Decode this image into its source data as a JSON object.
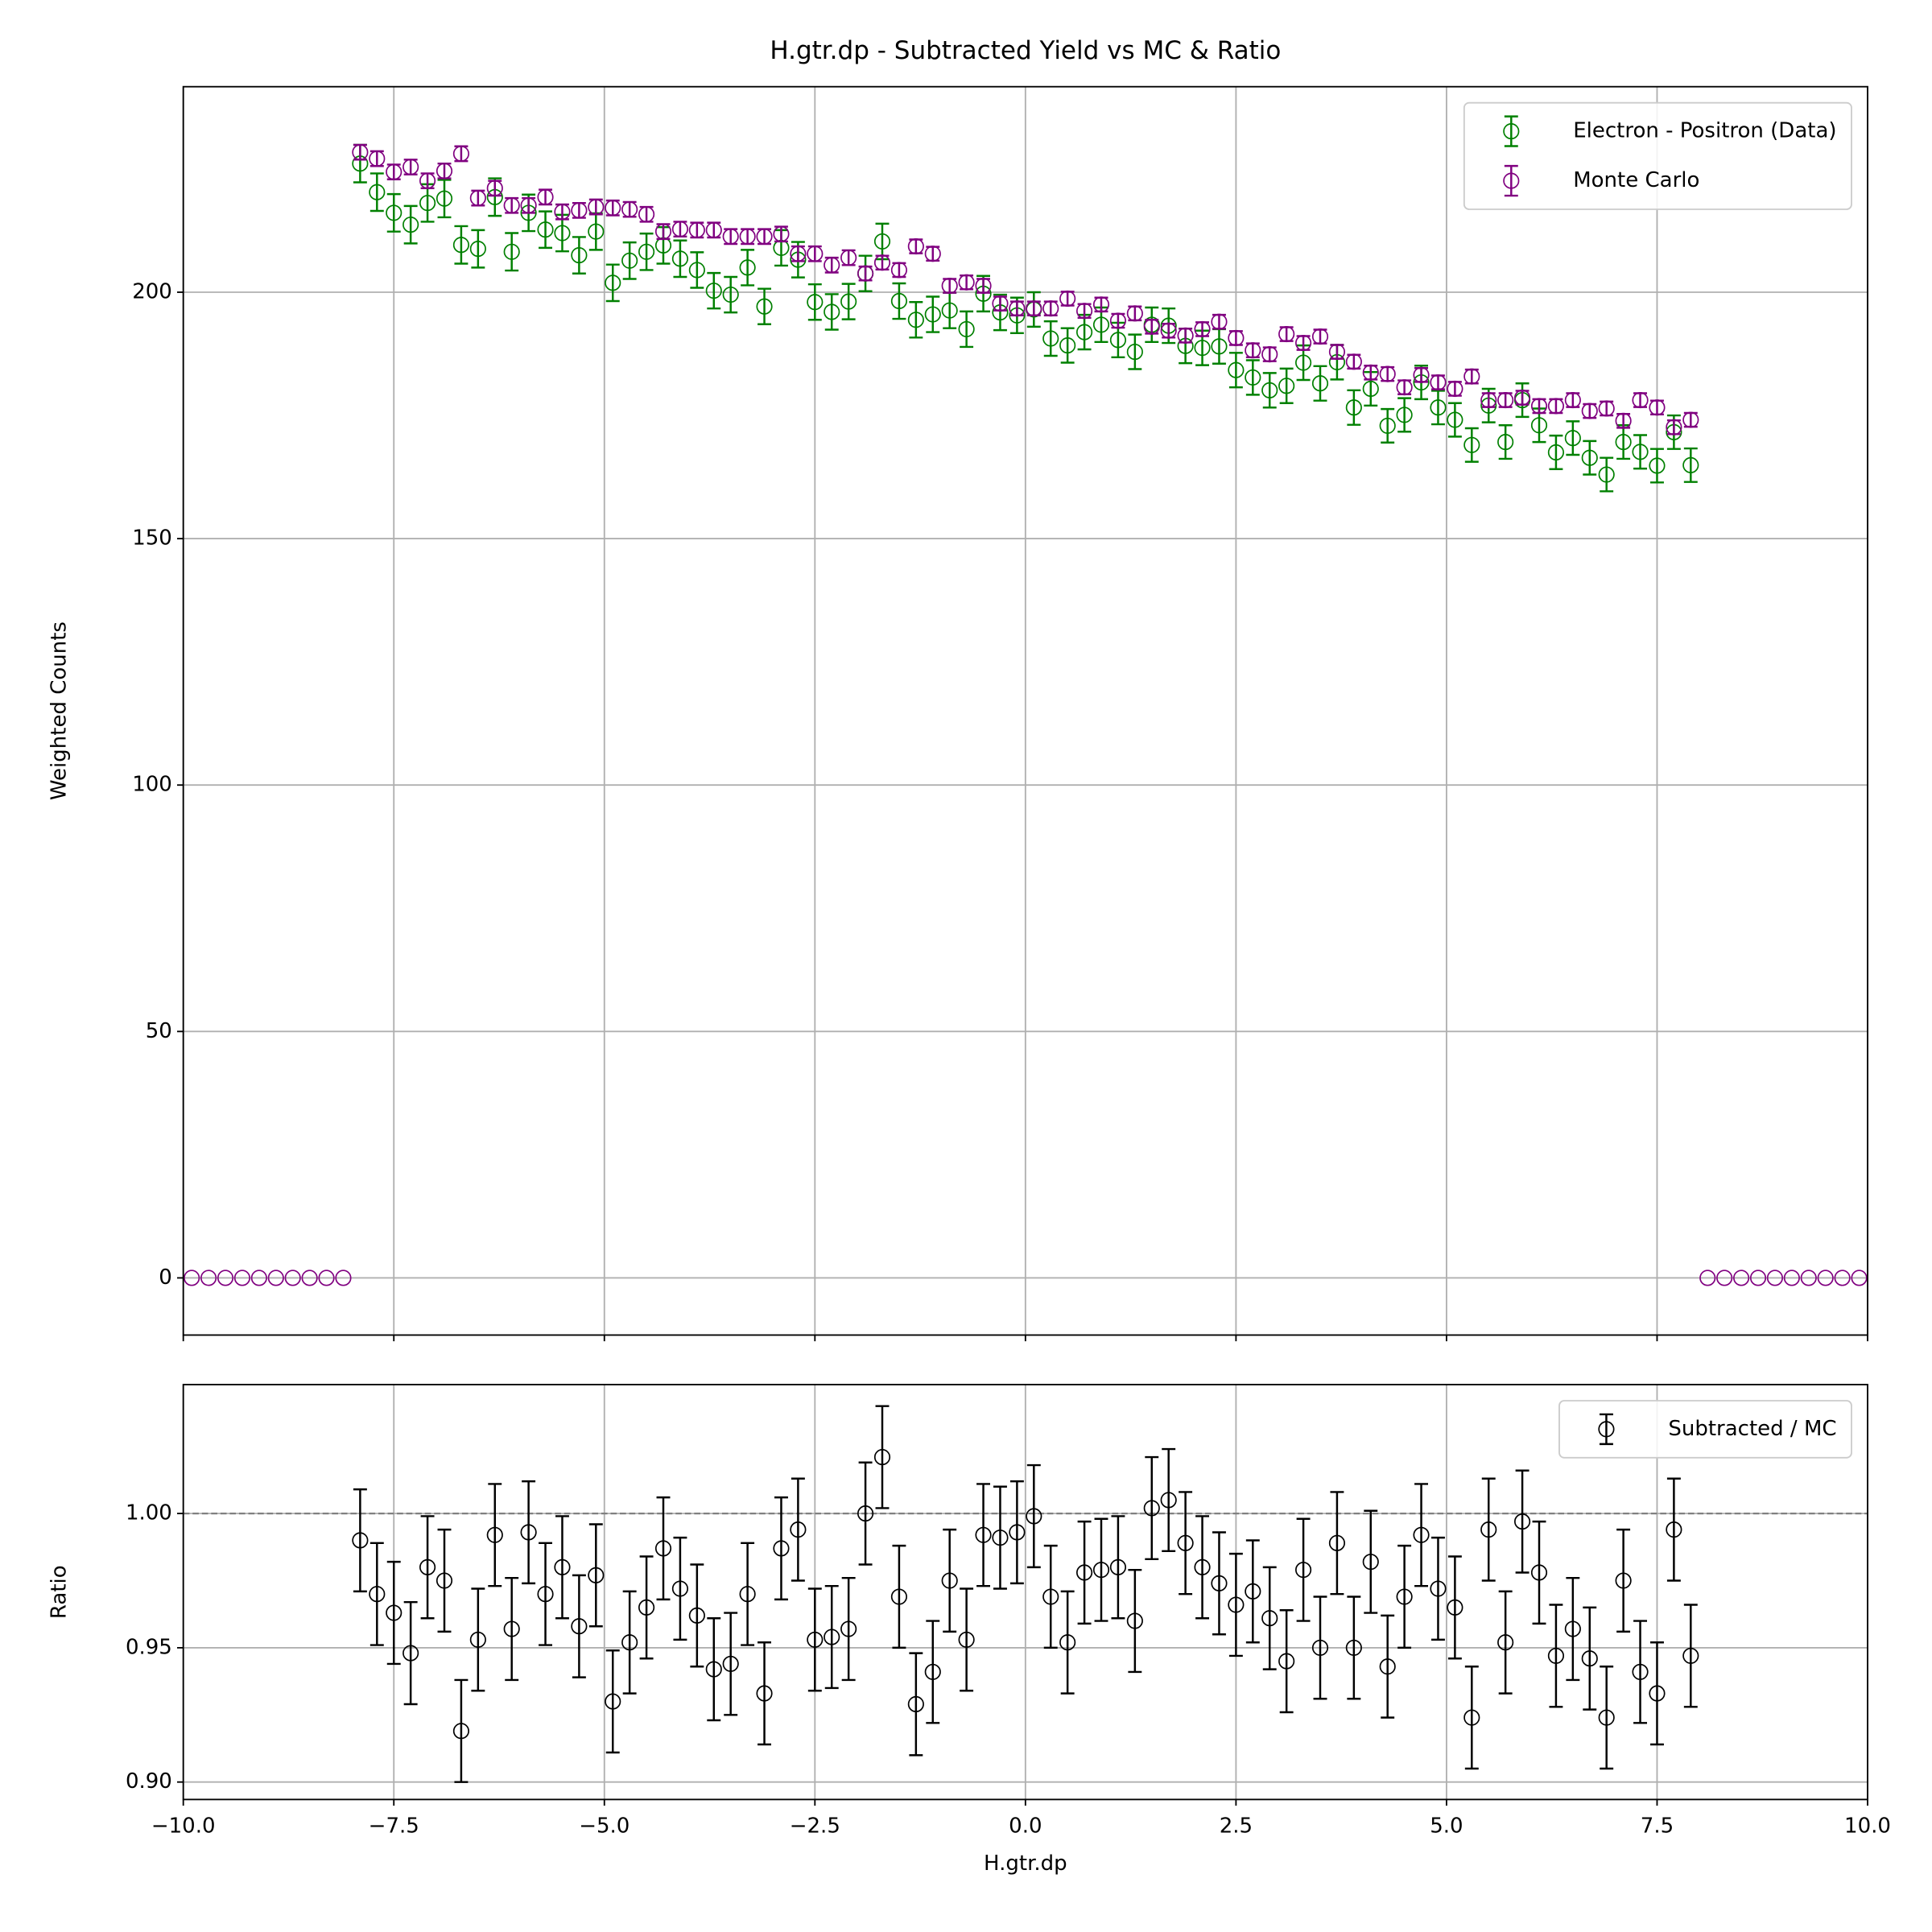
{
  "chart_data": [
    {
      "type": "errorbar",
      "title": "H.gtr.dp - Subtracted Yield vs MC & Ratio",
      "ylabel": "Weighted Counts",
      "xlim": [
        -10,
        10
      ],
      "ylim": [
        -11.6,
        241.7
      ],
      "xticks": [
        -10,
        -7.5,
        -5,
        -2.5,
        0,
        2.5,
        5,
        7.5,
        10
      ],
      "show_xticklabels": false,
      "yticks": [
        0,
        50,
        100,
        150,
        200
      ],
      "grid": true,
      "legend": "upper right",
      "series": [
        {
          "name": "Electron - Positron (Data)",
          "color": "#008000",
          "x": [
            -7.9,
            -7.7,
            -7.5,
            -7.3,
            -7.1,
            -6.9,
            -6.7,
            -6.5,
            -6.3,
            -6.1,
            -5.9,
            -5.7,
            -5.5,
            -5.3,
            -5.1,
            -4.9,
            -4.7,
            -4.5,
            -4.3,
            -4.1,
            -3.9,
            -3.7,
            -3.5,
            -3.3,
            -3.1,
            -2.9,
            -2.7,
            -2.5,
            -2.3,
            -2.1,
            -1.9,
            -1.7,
            -1.5,
            -1.3,
            -1.1,
            -0.9,
            -0.7,
            -0.5,
            -0.3,
            -0.1,
            0.1,
            0.3,
            0.5,
            0.7,
            0.9,
            1.1,
            1.3,
            1.5,
            1.7,
            1.9,
            2.1,
            2.3,
            2.5,
            2.7,
            2.9,
            3.1,
            3.3,
            3.5,
            3.7,
            3.9,
            4.1,
            4.3,
            4.5,
            4.7,
            4.9,
            5.1,
            5.3,
            5.5,
            5.7,
            5.9,
            6.1,
            6.3,
            6.5,
            6.7,
            6.9,
            7.1,
            7.3,
            7.5,
            7.7,
            7.9
          ],
          "values": [
            226.1,
            220.3,
            216.1,
            213.7,
            218.1,
            219.0,
            209.6,
            208.8,
            219.3,
            208.2,
            216.1,
            212.7,
            212.0,
            207.5,
            212.3,
            201.9,
            206.4,
            208.2,
            209.5,
            206.8,
            204.5,
            200.3,
            199.5,
            205.0,
            197.1,
            209.0,
            206.6,
            198.0,
            196.0,
            198.1,
            203.8,
            210.3,
            198.2,
            194.4,
            195.5,
            196.3,
            192.5,
            199.7,
            195.9,
            195.3,
            196.5,
            190.6,
            189.2,
            191.9,
            193.4,
            190.3,
            187.9,
            193.4,
            193.2,
            189.1,
            188.7,
            189.0,
            184.2,
            182.7,
            180.1,
            181.0,
            185.7,
            181.5,
            185.8,
            176.6,
            180.4,
            172.9,
            175.1,
            181.7,
            176.6,
            174.1,
            169.0,
            177.0,
            169.6,
            178.1,
            173.0,
            167.5,
            170.4,
            166.4,
            163.0,
            169.6,
            167.6,
            164.8,
            171.6,
            164.9
          ],
          "errors": [
            3.8,
            3.8,
            3.8,
            3.8,
            3.8,
            3.8,
            3.8,
            3.8,
            3.8,
            3.8,
            3.7,
            3.7,
            3.7,
            3.7,
            3.7,
            3.7,
            3.7,
            3.7,
            3.7,
            3.7,
            3.6,
            3.6,
            3.6,
            3.6,
            3.6,
            3.6,
            3.6,
            3.6,
            3.6,
            3.6,
            3.6,
            3.6,
            3.6,
            3.6,
            3.6,
            3.6,
            3.6,
            3.6,
            3.6,
            3.6,
            3.5,
            3.5,
            3.5,
            3.5,
            3.5,
            3.5,
            3.5,
            3.5,
            3.5,
            3.5,
            3.5,
            3.5,
            3.5,
            3.5,
            3.5,
            3.5,
            3.5,
            3.5,
            3.5,
            3.5,
            3.4,
            3.4,
            3.4,
            3.4,
            3.4,
            3.4,
            3.4,
            3.4,
            3.4,
            3.4,
            3.4,
            3.4,
            3.4,
            3.4,
            3.4,
            3.4,
            3.4,
            3.4,
            3.4,
            3.4
          ]
        },
        {
          "name": "Monte Carlo",
          "color": "#800080",
          "x": [
            -9.9,
            -9.7,
            -9.5,
            -9.3,
            -9.1,
            -8.9,
            -8.7,
            -8.5,
            -8.3,
            -8.1,
            -7.9,
            -7.7,
            -7.5,
            -7.3,
            -7.1,
            -6.9,
            -6.7,
            -6.5,
            -6.3,
            -6.1,
            -5.9,
            -5.7,
            -5.5,
            -5.3,
            -5.1,
            -4.9,
            -4.7,
            -4.5,
            -4.3,
            -4.1,
            -3.9,
            -3.7,
            -3.5,
            -3.3,
            -3.1,
            -2.9,
            -2.7,
            -2.5,
            -2.3,
            -2.1,
            -1.9,
            -1.7,
            -1.5,
            -1.3,
            -1.1,
            -0.9,
            -0.7,
            -0.5,
            -0.3,
            -0.1,
            0.1,
            0.3,
            0.5,
            0.7,
            0.9,
            1.1,
            1.3,
            1.5,
            1.7,
            1.9,
            2.1,
            2.3,
            2.5,
            2.7,
            2.9,
            3.1,
            3.3,
            3.5,
            3.7,
            3.9,
            4.1,
            4.3,
            4.5,
            4.7,
            4.9,
            5.1,
            5.3,
            5.5,
            5.7,
            5.9,
            6.1,
            6.3,
            6.5,
            6.7,
            6.9,
            7.1,
            7.3,
            7.5,
            7.7,
            7.9,
            8.1,
            8.3,
            8.5,
            8.7,
            8.9,
            9.1,
            9.3,
            9.5,
            9.7,
            9.9
          ],
          "values": [
            0,
            0,
            0,
            0,
            0,
            0,
            0,
            0,
            0,
            0,
            228.4,
            227.1,
            224.4,
            225.4,
            222.6,
            224.6,
            228.1,
            219.1,
            221.1,
            217.6,
            217.6,
            219.3,
            216.3,
            216.6,
            217.3,
            217.1,
            216.8,
            215.8,
            212.3,
            212.8,
            212.6,
            212.6,
            211.3,
            211.3,
            211.3,
            211.8,
            207.8,
            207.8,
            205.5,
            207.0,
            203.8,
            206.0,
            204.5,
            209.3,
            207.8,
            201.3,
            202.0,
            201.3,
            197.7,
            196.7,
            196.7,
            196.7,
            198.7,
            196.2,
            197.5,
            194.2,
            195.7,
            193.0,
            192.2,
            191.2,
            192.5,
            194.0,
            190.7,
            188.2,
            187.4,
            191.5,
            189.7,
            191.0,
            187.9,
            185.9,
            183.7,
            183.4,
            180.7,
            183.2,
            181.7,
            180.4,
            182.9,
            178.1,
            178.1,
            178.6,
            176.9,
            176.9,
            178.1,
            175.9,
            176.4,
            173.9,
            178.1,
            176.6,
            172.6,
            174.1,
            0,
            0,
            0,
            0,
            0,
            0,
            0,
            0,
            0,
            0
          ],
          "errors": [
            0,
            0,
            0,
            0,
            0,
            0,
            0,
            0,
            0,
            0,
            1.5,
            1.5,
            1.5,
            1.5,
            1.5,
            1.5,
            1.5,
            1.5,
            1.5,
            1.5,
            1.5,
            1.5,
            1.5,
            1.5,
            1.5,
            1.5,
            1.5,
            1.5,
            1.5,
            1.5,
            1.5,
            1.5,
            1.5,
            1.5,
            1.5,
            1.5,
            1.5,
            1.5,
            1.5,
            1.5,
            1.4,
            1.4,
            1.4,
            1.4,
            1.4,
            1.4,
            1.4,
            1.4,
            1.4,
            1.4,
            1.4,
            1.4,
            1.4,
            1.4,
            1.4,
            1.4,
            1.4,
            1.4,
            1.4,
            1.4,
            1.4,
            1.4,
            1.4,
            1.4,
            1.4,
            1.4,
            1.4,
            1.4,
            1.4,
            1.4,
            1.4,
            1.4,
            1.4,
            1.4,
            1.4,
            1.4,
            1.4,
            1.4,
            1.4,
            1.4,
            1.4,
            1.4,
            1.4,
            1.4,
            1.4,
            1.4,
            1.4,
            1.4,
            1.4,
            1.4,
            0,
            0,
            0,
            0,
            0,
            0,
            0,
            0,
            0,
            0
          ]
        }
      ]
    },
    {
      "type": "errorbar",
      "xlabel": "H.gtr.dp",
      "ylabel": "Ratio",
      "xlim": [
        -10,
        10
      ],
      "ylim": [
        0.8935,
        1.048
      ],
      "xticks": [
        {
          "value": -10,
          "label": "−10.0"
        },
        {
          "value": -7.5,
          "label": "−7.5"
        },
        {
          "value": -5,
          "label": "−5.0"
        },
        {
          "value": -2.5,
          "label": "−2.5"
        },
        {
          "value": 0,
          "label": "0.0"
        },
        2.5,
        {
          "value": 5,
          "label": "5.0"
        },
        7.5,
        {
          "value": 10,
          "label": "10.0"
        }
      ],
      "show_xticklabels": true,
      "yticks": [
        {
          "value": 0.9,
          "label": "0.90"
        },
        {
          "value": 0.95,
          "label": "0.95"
        },
        {
          "value": 1,
          "label": "1.00"
        }
      ],
      "hline": 1,
      "grid": true,
      "legend": "upper right",
      "series": [
        {
          "name": "Subtracted / MC",
          "color": "#000000",
          "x": [
            -7.9,
            -7.7,
            -7.5,
            -7.3,
            -7.1,
            -6.9,
            -6.7,
            -6.5,
            -6.3,
            -6.1,
            -5.9,
            -5.7,
            -5.5,
            -5.3,
            -5.1,
            -4.9,
            -4.7,
            -4.5,
            -4.3,
            -4.1,
            -3.9,
            -3.7,
            -3.5,
            -3.3,
            -3.1,
            -2.9,
            -2.7,
            -2.5,
            -2.3,
            -2.1,
            -1.9,
            -1.7,
            -1.5,
            -1.3,
            -1.1,
            -0.9,
            -0.7,
            -0.5,
            -0.3,
            -0.1,
            0.1,
            0.3,
            0.5,
            0.7,
            0.9,
            1.1,
            1.3,
            1.5,
            1.7,
            1.9,
            2.1,
            2.3,
            2.5,
            2.7,
            2.9,
            3.1,
            3.3,
            3.5,
            3.7,
            3.9,
            4.1,
            4.3,
            4.5,
            4.7,
            4.9,
            5.1,
            5.3,
            5.5,
            5.7,
            5.9,
            6.1,
            6.3,
            6.5,
            6.7,
            6.9,
            7.1,
            7.3,
            7.5,
            7.7,
            7.9
          ],
          "values": [
            0.99,
            0.97,
            0.963,
            0.948,
            0.98,
            0.975,
            0.919,
            0.953,
            0.992,
            0.957,
            0.993,
            0.97,
            0.98,
            0.958,
            0.977,
            0.93,
            0.952,
            0.965,
            0.987,
            0.972,
            0.962,
            0.942,
            0.944,
            0.97,
            0.933,
            0.987,
            0.994,
            0.953,
            0.954,
            0.957,
            1.0,
            1.021,
            0.969,
            0.929,
            0.941,
            0.975,
            0.953,
            0.992,
            0.991,
            0.993,
            0.999,
            0.969,
            0.952,
            0.978,
            0.979,
            0.98,
            0.96,
            1.002,
            1.005,
            0.989,
            0.98,
            0.974,
            0.966,
            0.971,
            0.961,
            0.945,
            0.979,
            0.95,
            0.989,
            0.95,
            0.982,
            0.943,
            0.969,
            0.992,
            0.972,
            0.965,
            0.924,
            0.994,
            0.952,
            0.997,
            0.978,
            0.947,
            0.957,
            0.946,
            0.924,
            0.975,
            0.941,
            0.933,
            0.994,
            0.947
          ],
          "errors": [
            0.019,
            0.019,
            0.019,
            0.019,
            0.019,
            0.019,
            0.019,
            0.019,
            0.019,
            0.019,
            0.019,
            0.019,
            0.019,
            0.019,
            0.019,
            0.019,
            0.019,
            0.019,
            0.019,
            0.019,
            0.019,
            0.019,
            0.019,
            0.019,
            0.019,
            0.019,
            0.019,
            0.019,
            0.019,
            0.019,
            0.019,
            0.019,
            0.019,
            0.019,
            0.019,
            0.019,
            0.019,
            0.019,
            0.019,
            0.019,
            0.019,
            0.019,
            0.019,
            0.019,
            0.019,
            0.019,
            0.019,
            0.019,
            0.019,
            0.019,
            0.019,
            0.019,
            0.019,
            0.019,
            0.019,
            0.019,
            0.019,
            0.019,
            0.019,
            0.019,
            0.019,
            0.019,
            0.019,
            0.019,
            0.019,
            0.019,
            0.019,
            0.019,
            0.019,
            0.019,
            0.019,
            0.019,
            0.019,
            0.019,
            0.019,
            0.019,
            0.019,
            0.019,
            0.019,
            0.019
          ]
        }
      ]
    }
  ]
}
